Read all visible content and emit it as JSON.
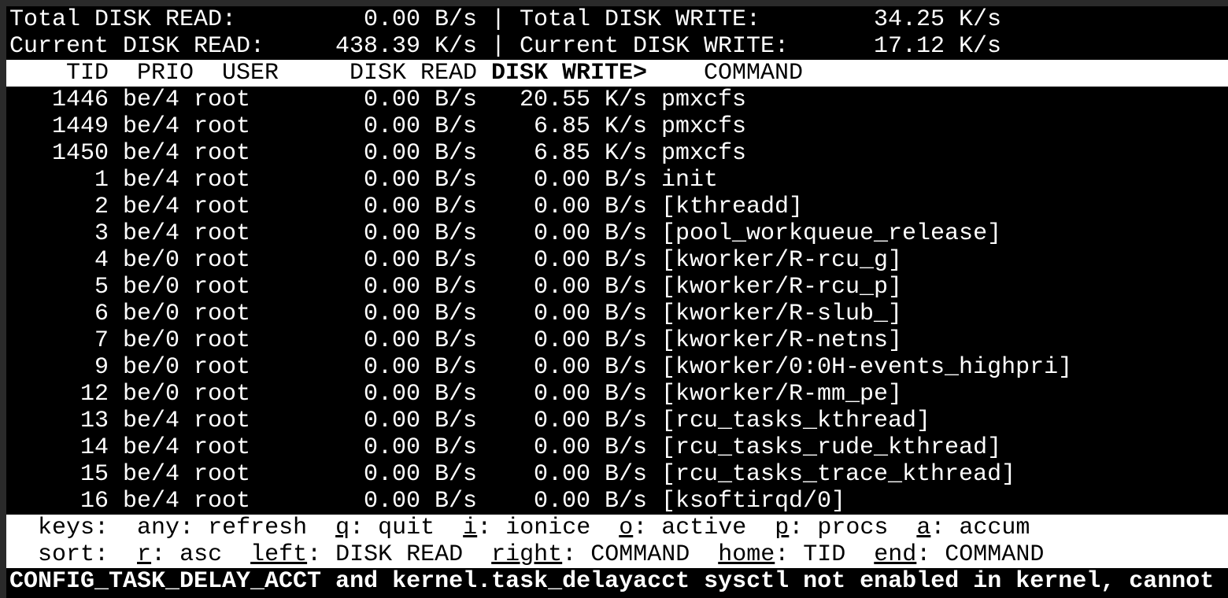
{
  "summary": {
    "total_read_label": "Total DISK READ:",
    "total_read": "0.00 B/s",
    "total_write_label": "Total DISK WRITE:",
    "total_write": "34.25 K/s",
    "current_read_label": "Current DISK READ:",
    "current_read": "438.39 K/s",
    "current_write_label": "Current DISK WRITE:",
    "current_write": "17.12 K/s",
    "separator": "|"
  },
  "columns": {
    "tid": "TID",
    "prio": "PRIO",
    "user": "USER",
    "disk_read": "DISK READ",
    "disk_write": "DISK WRITE>",
    "command": "COMMAND",
    "sorted_column": "disk_write"
  },
  "rows": [
    {
      "tid": "1446",
      "prio": "be/4",
      "user": "root",
      "read": "0.00 B/s",
      "write": "20.55 K/s",
      "command": "pmxcfs"
    },
    {
      "tid": "1449",
      "prio": "be/4",
      "user": "root",
      "read": "0.00 B/s",
      "write": "6.85 K/s",
      "command": "pmxcfs"
    },
    {
      "tid": "1450",
      "prio": "be/4",
      "user": "root",
      "read": "0.00 B/s",
      "write": "6.85 K/s",
      "command": "pmxcfs"
    },
    {
      "tid": "1",
      "prio": "be/4",
      "user": "root",
      "read": "0.00 B/s",
      "write": "0.00 B/s",
      "command": "init"
    },
    {
      "tid": "2",
      "prio": "be/4",
      "user": "root",
      "read": "0.00 B/s",
      "write": "0.00 B/s",
      "command": "[kthreadd]"
    },
    {
      "tid": "3",
      "prio": "be/4",
      "user": "root",
      "read": "0.00 B/s",
      "write": "0.00 B/s",
      "command": "[pool_workqueue_release]"
    },
    {
      "tid": "4",
      "prio": "be/0",
      "user": "root",
      "read": "0.00 B/s",
      "write": "0.00 B/s",
      "command": "[kworker/R-rcu_g]"
    },
    {
      "tid": "5",
      "prio": "be/0",
      "user": "root",
      "read": "0.00 B/s",
      "write": "0.00 B/s",
      "command": "[kworker/R-rcu_p]"
    },
    {
      "tid": "6",
      "prio": "be/0",
      "user": "root",
      "read": "0.00 B/s",
      "write": "0.00 B/s",
      "command": "[kworker/R-slub_]"
    },
    {
      "tid": "7",
      "prio": "be/0",
      "user": "root",
      "read": "0.00 B/s",
      "write": "0.00 B/s",
      "command": "[kworker/R-netns]"
    },
    {
      "tid": "9",
      "prio": "be/0",
      "user": "root",
      "read": "0.00 B/s",
      "write": "0.00 B/s",
      "command": "[kworker/0:0H-events_highpri]"
    },
    {
      "tid": "12",
      "prio": "be/0",
      "user": "root",
      "read": "0.00 B/s",
      "write": "0.00 B/s",
      "command": "[kworker/R-mm_pe]"
    },
    {
      "tid": "13",
      "prio": "be/4",
      "user": "root",
      "read": "0.00 B/s",
      "write": "0.00 B/s",
      "command": "[rcu_tasks_kthread]"
    },
    {
      "tid": "14",
      "prio": "be/4",
      "user": "root",
      "read": "0.00 B/s",
      "write": "0.00 B/s",
      "command": "[rcu_tasks_rude_kthread]"
    },
    {
      "tid": "15",
      "prio": "be/4",
      "user": "root",
      "read": "0.00 B/s",
      "write": "0.00 B/s",
      "command": "[rcu_tasks_trace_kthread]"
    },
    {
      "tid": "16",
      "prio": "be/4",
      "user": "root",
      "read": "0.00 B/s",
      "write": "0.00 B/s",
      "command": "[ksoftirqd/0]"
    }
  ],
  "keys": {
    "label": "keys:",
    "items": [
      {
        "key": "any",
        "desc": ": refresh",
        "underline": false
      },
      {
        "key": "q",
        "desc": ": quit",
        "underline": true
      },
      {
        "key": "i",
        "desc": ": ionice",
        "underline": true
      },
      {
        "key": "o",
        "desc": ": active",
        "underline": true
      },
      {
        "key": "p",
        "desc": ": procs",
        "underline": true
      },
      {
        "key": "a",
        "desc": ": accum",
        "underline": true
      }
    ]
  },
  "sort": {
    "label": "sort:",
    "items": [
      {
        "key": "r",
        "desc": ": asc",
        "underline": true
      },
      {
        "key": "left",
        "desc": ": DISK READ",
        "underline": true
      },
      {
        "key": "right",
        "desc": ": COMMAND",
        "underline": true
      },
      {
        "key": "home",
        "desc": ": TID",
        "underline": true
      },
      {
        "key": "end",
        "desc": ": COMMAND",
        "underline": true
      }
    ]
  },
  "status_message": "CONFIG_TASK_DELAY_ACCT and kernel.task_delayacct sysctl not enabled in kernel, cannot",
  "colors": {
    "background": "#000000",
    "foreground": "#ffffff",
    "frame": "#2a2a2a"
  }
}
